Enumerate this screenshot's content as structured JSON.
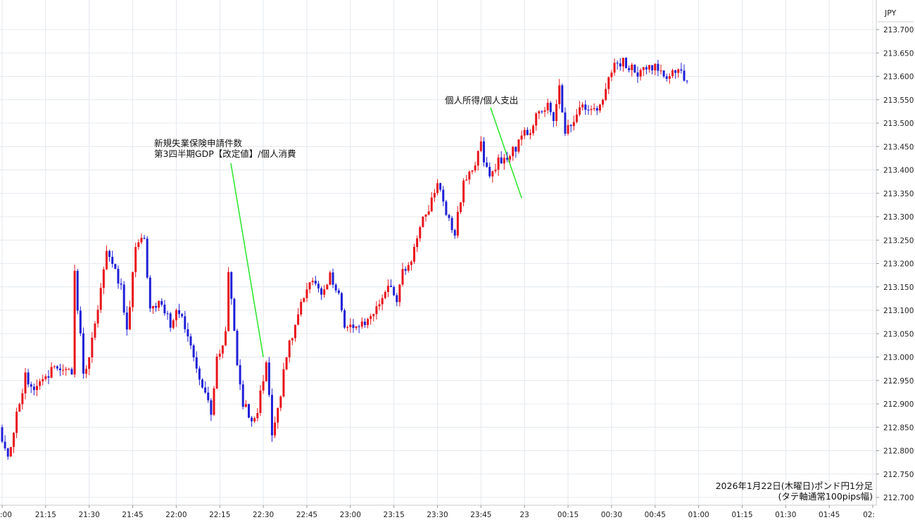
{
  "chart_data": {
    "type": "candlestick",
    "currency_label": "JPY",
    "y_ticks": [
      "213.700",
      "213.650",
      "213.600",
      "213.550",
      "213.500",
      "213.450",
      "213.400",
      "213.350",
      "213.300",
      "213.250",
      "213.200",
      "213.150",
      "213.100",
      "213.050",
      "213.000",
      "212.950",
      "212.900",
      "212.850",
      "212.800",
      "212.750",
      "212.700"
    ],
    "ylim": [
      212.685,
      213.735
    ],
    "x_ticks": [
      ":00",
      "21:15",
      "21:30",
      "21:45",
      "22:00",
      "22:15",
      "22:30",
      "22:45",
      "23:00",
      "23:15",
      "23:30",
      "23:45",
      "23",
      "00:15",
      "00:30",
      "00:45",
      "01:00",
      "01:15",
      "01:30",
      "01:45",
      "02:"
    ],
    "start_time": "21:00",
    "grid": true,
    "up_color": "#e8141b",
    "down_color": "#1f1fd6",
    "annotations": [
      {
        "lines": [
          "新規失業保険申請件数",
          "第3四半期GDP【改定値】/個人消費"
        ],
        "time": "22:30",
        "price": 213.0
      },
      {
        "lines": [
          "個人所得/個人支出"
        ],
        "time": "23:59",
        "price": 213.34
      }
    ],
    "footer": [
      "2026年1月22日(木曜日)ポンド円1分足",
      "(タテ軸通常100pips幅)"
    ],
    "waypoints": [
      [
        0,
        212.85
      ],
      [
        3,
        212.79
      ],
      [
        7,
        212.9
      ],
      [
        9,
        212.96
      ],
      [
        13,
        212.93
      ],
      [
        16,
        212.96
      ],
      [
        20,
        212.98
      ],
      [
        25,
        212.97
      ],
      [
        26,
        213.18
      ],
      [
        29,
        212.97
      ],
      [
        31,
        213.0
      ],
      [
        34,
        213.1
      ],
      [
        37,
        213.22
      ],
      [
        42,
        213.15
      ],
      [
        44,
        213.05
      ],
      [
        47,
        213.24
      ],
      [
        50,
        213.26
      ],
      [
        52,
        213.1
      ],
      [
        56,
        213.12
      ],
      [
        59,
        213.07
      ],
      [
        62,
        213.1
      ],
      [
        65,
        213.04
      ],
      [
        68,
        212.98
      ],
      [
        71,
        212.92
      ],
      [
        73,
        212.88
      ],
      [
        75,
        213.0
      ],
      [
        78,
        213.05
      ],
      [
        79,
        213.19
      ],
      [
        82,
        212.98
      ],
      [
        84,
        212.9
      ],
      [
        86,
        212.88
      ],
      [
        88,
        212.86
      ],
      [
        90,
        212.92
      ],
      [
        92,
        212.98
      ],
      [
        94,
        212.84
      ],
      [
        97,
        212.92
      ],
      [
        99,
        213.01
      ],
      [
        102,
        213.06
      ],
      [
        104,
        213.12
      ],
      [
        107,
        213.16
      ],
      [
        111,
        213.14
      ],
      [
        114,
        213.17
      ],
      [
        117,
        213.13
      ],
      [
        119,
        213.07
      ],
      [
        123,
        213.06
      ],
      [
        127,
        213.08
      ],
      [
        131,
        213.12
      ],
      [
        134,
        213.16
      ],
      [
        137,
        213.12
      ],
      [
        139,
        213.18
      ],
      [
        142,
        213.2
      ],
      [
        144,
        213.26
      ],
      [
        146,
        213.3
      ],
      [
        148,
        213.32
      ],
      [
        151,
        213.38
      ],
      [
        154,
        213.3
      ],
      [
        157,
        213.26
      ],
      [
        160,
        213.38
      ],
      [
        163,
        213.4
      ],
      [
        166,
        213.45
      ],
      [
        169,
        213.38
      ],
      [
        172,
        213.42
      ],
      [
        175,
        213.42
      ],
      [
        178,
        213.45
      ],
      [
        180,
        213.48
      ],
      [
        183,
        213.48
      ],
      [
        186,
        213.53
      ],
      [
        189,
        213.54
      ],
      [
        191,
        213.5
      ],
      [
        193,
        213.58
      ],
      [
        195,
        213.48
      ],
      [
        198,
        213.51
      ],
      [
        201,
        213.54
      ],
      [
        204,
        213.52
      ],
      [
        207,
        213.53
      ],
      [
        210,
        213.59
      ],
      [
        212,
        213.63
      ],
      [
        215,
        213.63
      ],
      [
        220,
        213.61
      ],
      [
        225,
        213.62
      ],
      [
        230,
        213.6
      ],
      [
        234,
        213.62
      ],
      [
        236,
        213.6
      ]
    ]
  }
}
